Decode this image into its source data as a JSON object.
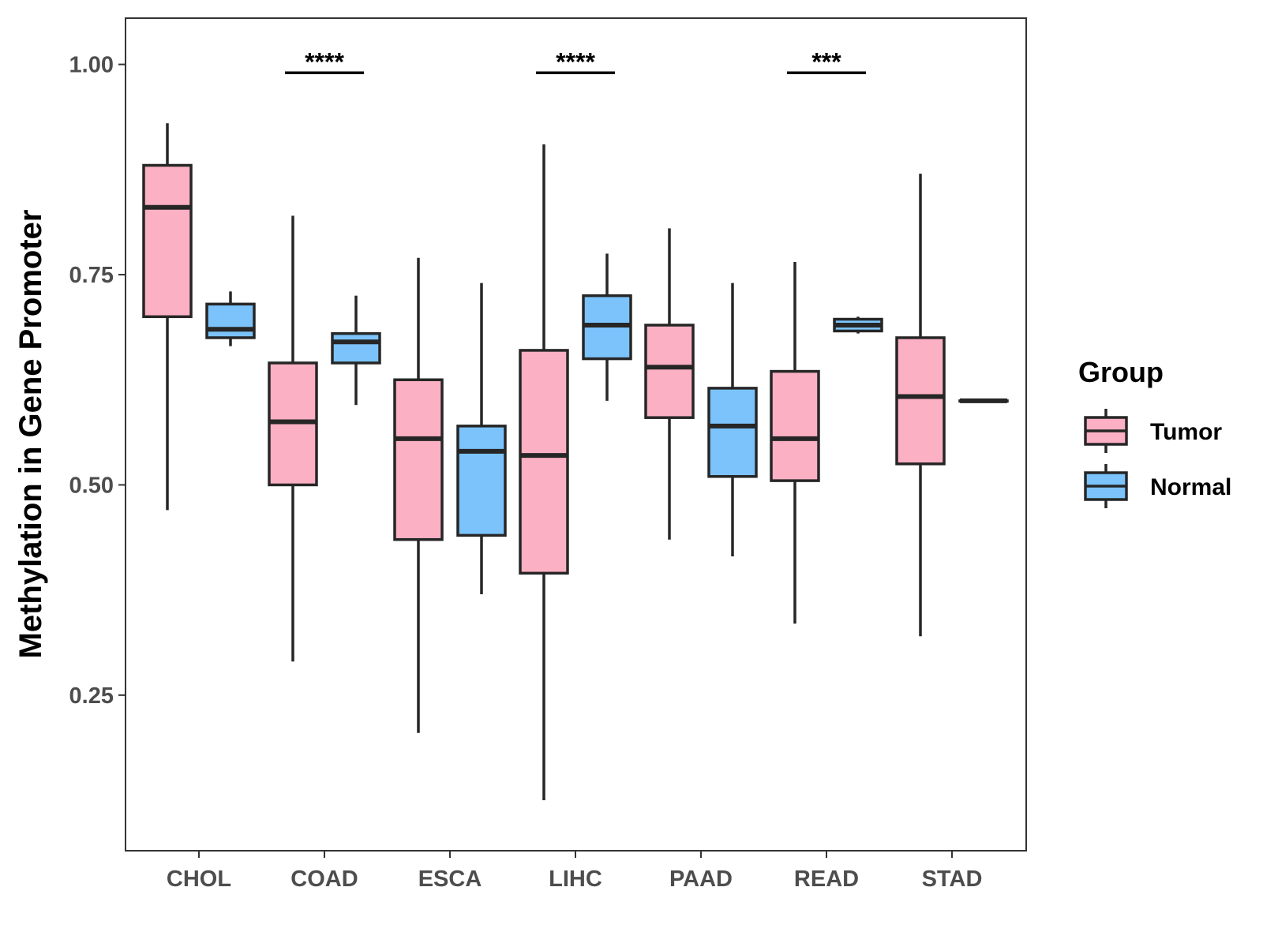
{
  "chart_data": {
    "type": "box",
    "ylabel": "Methylation in Gene Promoter",
    "xlabel": "",
    "ylim": [
      0.065,
      1.055
    ],
    "yticks": [
      0.25,
      0.5,
      0.75,
      1.0
    ],
    "ytick_labels": [
      "0.25",
      "0.50",
      "0.75",
      "1.00"
    ],
    "categories": [
      "CHOL",
      "COAD",
      "ESCA",
      "LIHC",
      "PAAD",
      "READ",
      "STAD"
    ],
    "legend": {
      "title": "Group",
      "position": "right",
      "entries": [
        {
          "name": "Tumor",
          "color": "#FBB0C4"
        },
        {
          "name": "Normal",
          "color": "#7BC3FA"
        }
      ]
    },
    "series": [
      {
        "name": "Tumor",
        "color": "#FBB0C4",
        "boxes": [
          {
            "category": "CHOL",
            "min": 0.47,
            "q1": 0.7,
            "median": 0.83,
            "q3": 0.88,
            "max": 0.93
          },
          {
            "category": "COAD",
            "min": 0.29,
            "q1": 0.5,
            "median": 0.575,
            "q3": 0.645,
            "max": 0.82
          },
          {
            "category": "ESCA",
            "min": 0.205,
            "q1": 0.435,
            "median": 0.555,
            "q3": 0.625,
            "max": 0.77
          },
          {
            "category": "LIHC",
            "min": 0.125,
            "q1": 0.395,
            "median": 0.535,
            "q3": 0.66,
            "max": 0.905
          },
          {
            "category": "PAAD",
            "min": 0.435,
            "q1": 0.58,
            "median": 0.64,
            "q3": 0.69,
            "max": 0.805
          },
          {
            "category": "READ",
            "min": 0.335,
            "q1": 0.505,
            "median": 0.555,
            "q3": 0.635,
            "max": 0.765
          },
          {
            "category": "STAD",
            "min": 0.32,
            "q1": 0.525,
            "median": 0.605,
            "q3": 0.675,
            "max": 0.87
          }
        ]
      },
      {
        "name": "Normal",
        "color": "#7BC3FA",
        "boxes": [
          {
            "category": "CHOL",
            "min": 0.665,
            "q1": 0.675,
            "median": 0.685,
            "q3": 0.715,
            "max": 0.73
          },
          {
            "category": "COAD",
            "min": 0.595,
            "q1": 0.645,
            "median": 0.67,
            "q3": 0.68,
            "max": 0.725
          },
          {
            "category": "ESCA",
            "min": 0.37,
            "q1": 0.44,
            "median": 0.54,
            "q3": 0.57,
            "max": 0.74
          },
          {
            "category": "LIHC",
            "min": 0.6,
            "q1": 0.65,
            "median": 0.69,
            "q3": 0.725,
            "max": 0.775
          },
          {
            "category": "PAAD",
            "min": 0.415,
            "q1": 0.51,
            "median": 0.57,
            "q3": 0.615,
            "max": 0.74
          },
          {
            "category": "READ",
            "min": 0.68,
            "q1": 0.683,
            "median": 0.69,
            "q3": 0.697,
            "max": 0.7
          },
          {
            "category": "STAD",
            "min": 0.6,
            "q1": 0.6,
            "median": 0.6,
            "q3": 0.6,
            "max": 0.6
          }
        ]
      }
    ],
    "significance": [
      {
        "category": "COAD",
        "label": "****",
        "y": 0.99
      },
      {
        "category": "LIHC",
        "label": "****",
        "y": 0.99
      },
      {
        "category": "READ",
        "label": "***",
        "y": 0.99
      }
    ]
  }
}
